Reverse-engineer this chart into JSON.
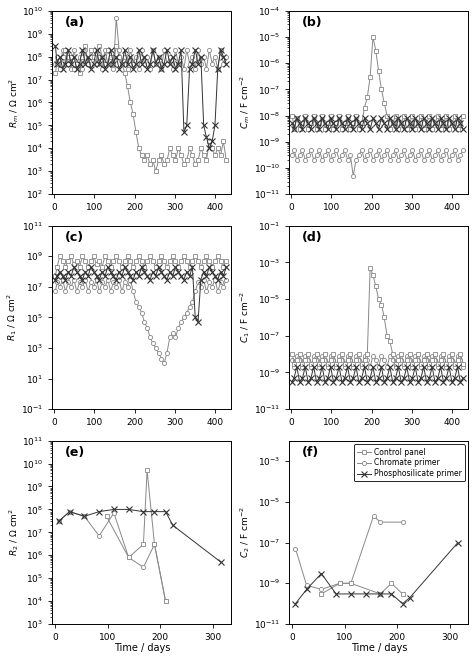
{
  "panels": [
    "(a)",
    "(b)",
    "(c)",
    "(d)",
    "(e)",
    "(f)"
  ],
  "ylabels_a": "Rm / Ω cm²",
  "ylabels_b": "Cm / F cm⁻²",
  "ylabels_c": "R1 / Ω cm²",
  "ylabels_d": "C1 / F cm⁻²",
  "ylabels_e": "R2 / Ω cm²",
  "ylabels_f": "C2 / F cm⁻²",
  "xlabel": "Time / days",
  "legend_labels": [
    "Control panel",
    "Chromate primer",
    "Phosphosilicate primer"
  ]
}
